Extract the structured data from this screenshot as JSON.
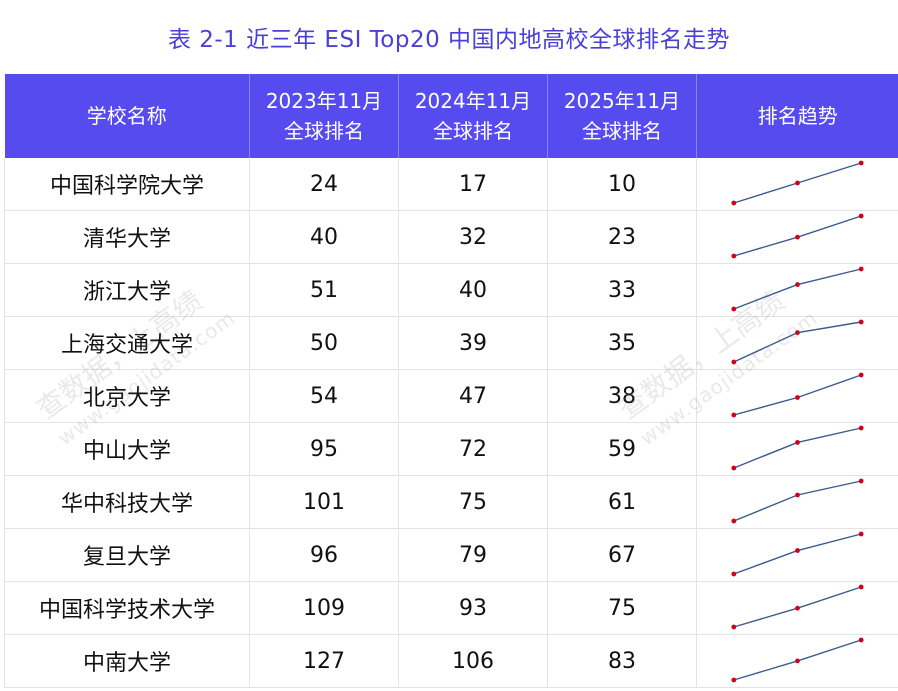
{
  "title": "表 2-1 近三年 ESI Top20 中国内地高校全球排名走势",
  "headers": {
    "school": "学校名称",
    "y2023_line1": "2023年11月",
    "y2023_line2": "全球排名",
    "y2024_line1": "2024年11月",
    "y2024_line2": "全球排名",
    "y2025_line1": "2025年11月",
    "y2025_line2": "全球排名",
    "trend": "排名趋势"
  },
  "rows": [
    {
      "name": "中国科学院大学",
      "r2023": 24,
      "r2024": 17,
      "r2025": 10
    },
    {
      "name": "清华大学",
      "r2023": 40,
      "r2024": 32,
      "r2025": 23
    },
    {
      "name": "浙江大学",
      "r2023": 51,
      "r2024": 40,
      "r2025": 33
    },
    {
      "name": "上海交通大学",
      "r2023": 50,
      "r2024": 39,
      "r2025": 35
    },
    {
      "name": "北京大学",
      "r2023": 54,
      "r2024": 47,
      "r2025": 38
    },
    {
      "name": "中山大学",
      "r2023": 95,
      "r2024": 72,
      "r2025": 59
    },
    {
      "name": "华中科技大学",
      "r2023": 101,
      "r2024": 75,
      "r2025": 61
    },
    {
      "name": "复旦大学",
      "r2023": 96,
      "r2024": 79,
      "r2025": 67
    },
    {
      "name": "中国科学技术大学",
      "r2023": 109,
      "r2024": 93,
      "r2025": 75
    },
    {
      "name": "中南大学",
      "r2023": 127,
      "r2024": 106,
      "r2025": 83
    }
  ],
  "watermark": {
    "line1": "查数据，上高绩",
    "line2": "www.gaojidata.com"
  },
  "colors": {
    "title": "#4a3fd8",
    "header_bg": "#564bef",
    "trend_line": "#3b5b8c",
    "trend_marker": "#d0021b"
  }
}
